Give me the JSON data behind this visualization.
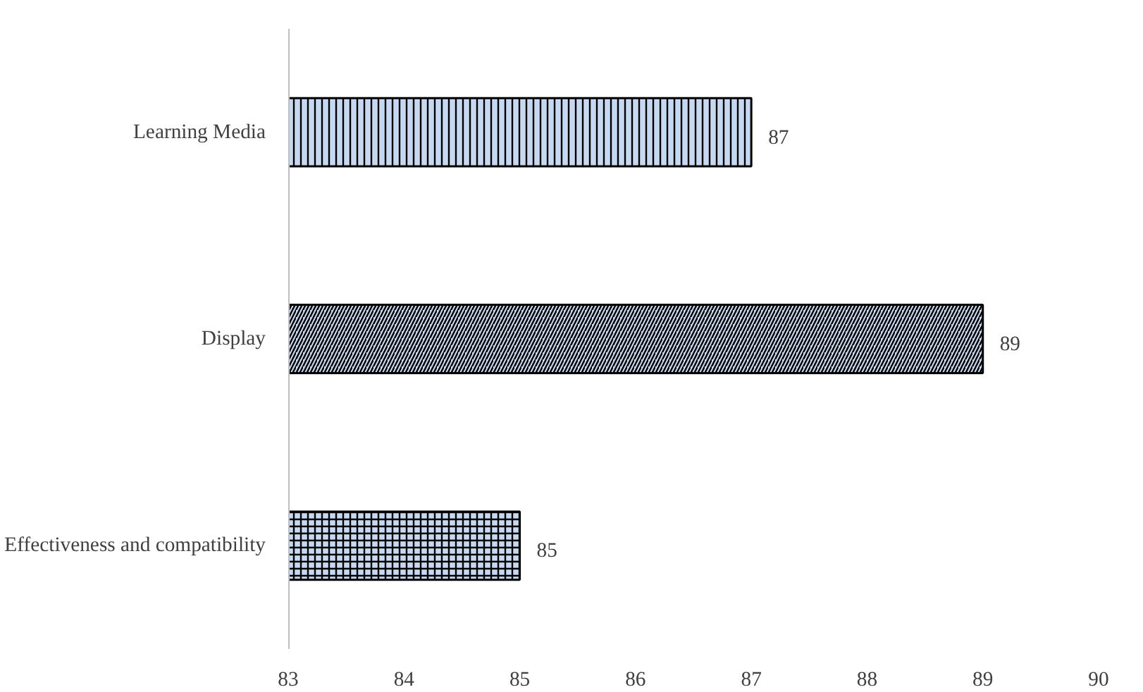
{
  "chart_data": {
    "type": "bar",
    "orientation": "horizontal",
    "categories": [
      "Learning Media",
      "Display",
      "Effectiveness and compatibility"
    ],
    "values": [
      87,
      89,
      85
    ],
    "colors": [
      "#c6d9f1",
      "#c6d9f1",
      "#c6d9f1"
    ],
    "xlim": [
      83,
      90
    ],
    "xticks": [
      83,
      84,
      85,
      86,
      87,
      88,
      89,
      90
    ],
    "grid": false,
    "data_labels": true
  }
}
